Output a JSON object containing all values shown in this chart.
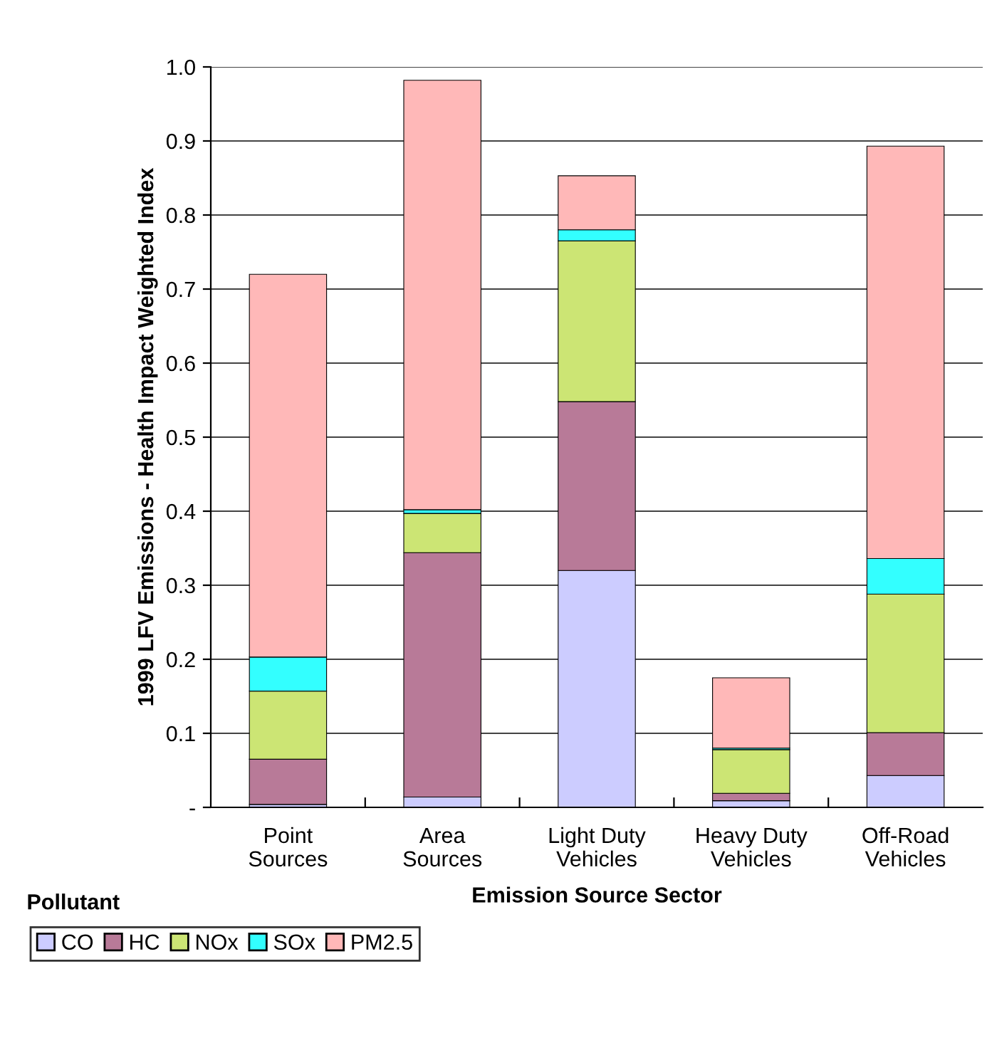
{
  "chart_data": {
    "type": "bar",
    "stacked": true,
    "xlabel": "Emission Source Sector",
    "ylabel": "1999 LFV Emissions - Health Impact Weighted Index",
    "legend_title": "Pollutant",
    "legend": "bottom left",
    "grid": "y",
    "categories": [
      "Point\nSources",
      "Area\nSources",
      "Light Duty\nVehicles",
      "Heavy Duty\nVehicles",
      "Off-Road\nVehicles"
    ],
    "series": [
      {
        "name": "CO",
        "color": "#ccccff",
        "values": [
          0.004,
          0.014,
          0.32,
          0.009,
          0.043
        ]
      },
      {
        "name": "HC",
        "color": "#b87a98",
        "values": [
          0.061,
          0.33,
          0.228,
          0.01,
          0.058
        ]
      },
      {
        "name": "NOx",
        "color": "#cce574",
        "values": [
          0.092,
          0.053,
          0.217,
          0.059,
          0.187
        ]
      },
      {
        "name": "SOx",
        "color": "#33ffff",
        "values": [
          0.046,
          0.005,
          0.015,
          0.002,
          0.048
        ]
      },
      {
        "name": "PM2.5",
        "color": "#ffb8b8",
        "values": [
          0.517,
          0.58,
          0.073,
          0.095,
          0.557
        ]
      }
    ],
    "ylim": [
      0,
      1.0
    ],
    "yticks": [
      {
        "value": 0,
        "label": "-"
      },
      0.1,
      0.2,
      0.3,
      0.4,
      0.5,
      0.6,
      0.7,
      0.8,
      0.9,
      {
        "value": 1.0,
        "label": "1.0"
      }
    ]
  }
}
